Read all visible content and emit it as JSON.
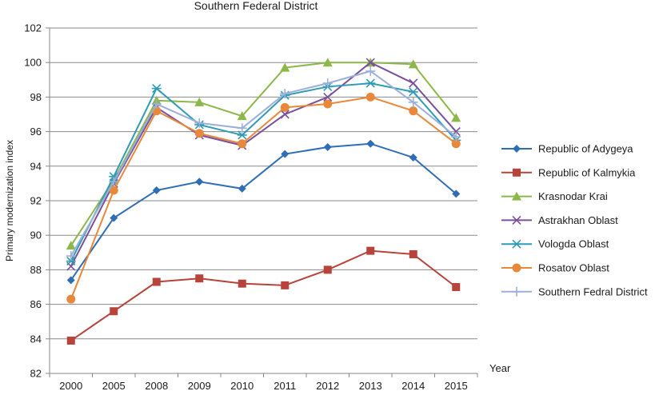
{
  "chart_data": {
    "type": "line",
    "title": "Southern Federal District",
    "xlabel": "Year",
    "ylabel": "Primary modernization index",
    "categories": [
      "2000",
      "2005",
      "2008",
      "2009",
      "2010",
      "2011",
      "2012",
      "2013",
      "2014",
      "2015"
    ],
    "ylim": [
      82,
      102
    ],
    "yticks": [
      82,
      84,
      86,
      88,
      90,
      92,
      94,
      96,
      98,
      100,
      102
    ],
    "grid": true,
    "legend_position": "right",
    "series": [
      {
        "name": "Republic of Adygeya",
        "color": "#2e6eb5",
        "marker": "diamond",
        "values": [
          87.4,
          91.0,
          92.6,
          93.1,
          92.7,
          94.7,
          95.1,
          95.3,
          94.5,
          92.4
        ]
      },
      {
        "name": "Republic of Kalmykia",
        "color": "#b8433a",
        "marker": "square",
        "values": [
          83.9,
          85.6,
          87.3,
          87.5,
          87.2,
          87.1,
          88.0,
          89.1,
          88.9,
          87.0
        ]
      },
      {
        "name": "Krasnodar Krai",
        "color": "#8cb84a",
        "marker": "triangle",
        "values": [
          89.4,
          93.2,
          97.8,
          97.7,
          96.9,
          99.7,
          100.0,
          100.0,
          99.9,
          96.8
        ]
      },
      {
        "name": "Astrakhan Oblast",
        "color": "#7a4f9c",
        "marker": "x",
        "values": [
          88.2,
          93.0,
          97.4,
          95.8,
          95.2,
          97.0,
          98.0,
          100.0,
          98.8,
          96.0
        ]
      },
      {
        "name": "Vologda Oblast",
        "color": "#2f9bb5",
        "marker": "asterisk",
        "values": [
          88.5,
          93.4,
          98.5,
          96.4,
          95.8,
          98.1,
          98.6,
          98.8,
          98.3,
          95.5
        ]
      },
      {
        "name": "Rosatov Oblast",
        "color": "#e8883a",
        "marker": "circle",
        "values": [
          86.3,
          92.6,
          97.2,
          95.9,
          95.3,
          97.4,
          97.6,
          98.0,
          97.2,
          95.3
        ]
      },
      {
        "name": "Southern Fedral District",
        "color": "#9bb0d8",
        "marker": "plus",
        "values": [
          88.8,
          93.1,
          97.6,
          96.5,
          96.2,
          98.2,
          98.8,
          99.5,
          97.7,
          95.7
        ]
      }
    ]
  }
}
